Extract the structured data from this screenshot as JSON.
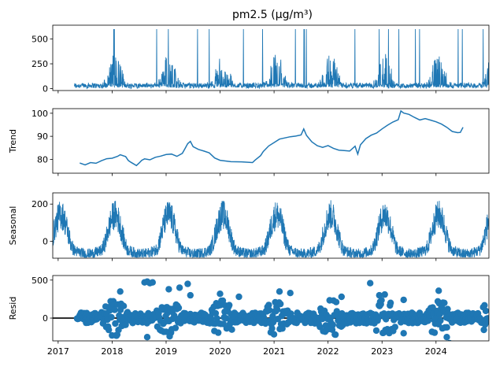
{
  "figure": {
    "title": "pm2.5 (µg/m³)"
  },
  "colors": {
    "series": "#1f77b4",
    "axis": "#000000",
    "zero_line": "#000000"
  },
  "chart_data": [
    {
      "type": "line",
      "panel": "observed",
      "title": "pm2.5 (µg/m³)",
      "ylabel": "",
      "ylim": [
        -20,
        640
      ],
      "yticks": [
        0,
        250,
        500
      ],
      "xlim": [
        2016.9,
        2024.98
      ],
      "xticks": [
        2017,
        2018,
        2019,
        2020,
        2021,
        2022,
        2023,
        2024
      ],
      "series": [
        {
          "name": "pm2.5 (µg/m³)",
          "data_start": 2017.3,
          "data_end": 2024.98
        }
      ]
    },
    {
      "type": "line",
      "panel": "trend",
      "title": "",
      "ylabel": "Trend",
      "ylim": [
        74,
        102
      ],
      "yticks": [
        80,
        90,
        100
      ],
      "xlim": [
        2016.9,
        2024.98
      ],
      "points": [
        [
          2017.4,
          78.4
        ],
        [
          2017.5,
          77.6
        ],
        [
          2017.6,
          78.6
        ],
        [
          2017.7,
          78.3
        ],
        [
          2017.8,
          79.4
        ],
        [
          2017.9,
          80.3
        ],
        [
          2018.0,
          80.5
        ],
        [
          2018.1,
          81.3
        ],
        [
          2018.15,
          82.0
        ],
        [
          2018.25,
          81.2
        ],
        [
          2018.3,
          79.5
        ],
        [
          2018.35,
          78.7
        ],
        [
          2018.45,
          77.3
        ],
        [
          2018.5,
          78.4
        ],
        [
          2018.55,
          79.6
        ],
        [
          2018.6,
          80.2
        ],
        [
          2018.7,
          79.8
        ],
        [
          2018.8,
          80.9
        ],
        [
          2018.9,
          81.4
        ],
        [
          2019.0,
          82.1
        ],
        [
          2019.1,
          82.3
        ],
        [
          2019.2,
          81.3
        ],
        [
          2019.3,
          82.6
        ],
        [
          2019.35,
          84.7
        ],
        [
          2019.4,
          86.8
        ],
        [
          2019.45,
          87.8
        ],
        [
          2019.5,
          85.5
        ],
        [
          2019.6,
          84.3
        ],
        [
          2019.7,
          83.6
        ],
        [
          2019.8,
          82.8
        ],
        [
          2019.9,
          80.6
        ],
        [
          2020.0,
          79.6
        ],
        [
          2020.2,
          79.0
        ],
        [
          2020.4,
          78.9
        ],
        [
          2020.6,
          78.6
        ],
        [
          2020.65,
          79.7
        ],
        [
          2020.75,
          81.6
        ],
        [
          2020.8,
          83.4
        ],
        [
          2020.9,
          85.8
        ],
        [
          2021.0,
          87.3
        ],
        [
          2021.1,
          88.8
        ],
        [
          2021.2,
          89.3
        ],
        [
          2021.3,
          89.8
        ],
        [
          2021.4,
          90.1
        ],
        [
          2021.5,
          90.6
        ],
        [
          2021.55,
          93.2
        ],
        [
          2021.6,
          90.4
        ],
        [
          2021.7,
          87.6
        ],
        [
          2021.8,
          85.9
        ],
        [
          2021.9,
          85.2
        ],
        [
          2022.0,
          86.0
        ],
        [
          2022.1,
          84.8
        ],
        [
          2022.2,
          84.0
        ],
        [
          2022.3,
          83.8
        ],
        [
          2022.4,
          83.6
        ],
        [
          2022.5,
          85.7
        ],
        [
          2022.55,
          82.3
        ],
        [
          2022.6,
          86.3
        ],
        [
          2022.7,
          89.0
        ],
        [
          2022.8,
          90.5
        ],
        [
          2022.9,
          91.4
        ],
        [
          2023.0,
          93.2
        ],
        [
          2023.1,
          94.8
        ],
        [
          2023.2,
          96.2
        ],
        [
          2023.3,
          97.2
        ],
        [
          2023.35,
          101.0
        ],
        [
          2023.4,
          100.1
        ],
        [
          2023.5,
          99.5
        ],
        [
          2023.6,
          98.2
        ],
        [
          2023.7,
          97.1
        ],
        [
          2023.8,
          97.7
        ],
        [
          2023.9,
          97.0
        ],
        [
          2024.0,
          96.3
        ],
        [
          2024.1,
          95.3
        ],
        [
          2024.2,
          93.9
        ],
        [
          2024.3,
          92.1
        ],
        [
          2024.4,
          91.6
        ],
        [
          2024.45,
          91.7
        ],
        [
          2024.5,
          93.9
        ]
      ]
    },
    {
      "type": "line",
      "panel": "seasonal",
      "title": "",
      "ylabel": "Seasonal",
      "ylim": [
        -90,
        260
      ],
      "yticks": [
        0,
        200
      ],
      "xlim": [
        2016.9,
        2024.98
      ],
      "annual_peaks": [
        2017.05,
        2018.05,
        2019.05,
        2020.05,
        2021.05,
        2022.05,
        2023.05,
        2024.05,
        2025.0
      ],
      "peak_value": 240,
      "trough_value": -80
    },
    {
      "type": "scatter",
      "panel": "resid",
      "title": "",
      "ylabel": "Resid",
      "ylim": [
        -300,
        560
      ],
      "yticks": [
        0,
        500
      ],
      "xlim": [
        2016.9,
        2024.98
      ],
      "xlabels": [
        "2017",
        "2018",
        "2019",
        "2020",
        "2021",
        "2022",
        "2023",
        "2024"
      ],
      "zero_line": 0,
      "outliers": [
        [
          2018.15,
          350
        ],
        [
          2018.6,
          470
        ],
        [
          2018.65,
          480
        ],
        [
          2018.7,
          460
        ],
        [
          2018.75,
          470
        ],
        [
          2019.05,
          380
        ],
        [
          2019.25,
          400
        ],
        [
          2019.4,
          450
        ],
        [
          2019.45,
          300
        ],
        [
          2020.0,
          320
        ],
        [
          2020.35,
          280
        ],
        [
          2021.1,
          350
        ],
        [
          2021.3,
          330
        ],
        [
          2022.25,
          280
        ],
        [
          2022.78,
          460
        ],
        [
          2022.95,
          300
        ],
        [
          2023.05,
          310
        ],
        [
          2023.4,
          240
        ],
        [
          2024.05,
          360
        ],
        [
          2024.25,
          -330
        ],
        [
          2018.65,
          -250
        ],
        [
          2019.0,
          -180
        ],
        [
          2023.4,
          -200
        ],
        [
          2024.2,
          -250
        ]
      ]
    }
  ]
}
